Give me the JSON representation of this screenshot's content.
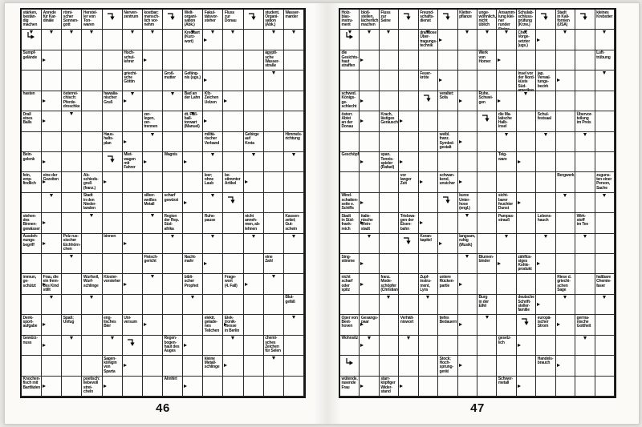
{
  "colors": {
    "paper": "#fbfaf7",
    "ink": "#0d0d0d",
    "grid_line": "#2a2a2a"
  },
  "pages": [
    {
      "number": "46",
      "grid": {
        "cols": 14,
        "rows": 19
      },
      "clues": [
        {
          "r": 0,
          "c": 0,
          "t": "stärken,\nbestän-\ndig\nmachen",
          "a": "d"
        },
        {
          "r": 0,
          "c": 1,
          "t": "Anrede\nfür Kar-\ndinäle",
          "a": "d"
        },
        {
          "r": 0,
          "c": 2,
          "t": "römi-\nscher\nSonnen-\ngott",
          "a": "d"
        },
        {
          "r": 0,
          "c": 3,
          "t": "Herstel-\nler von\nTon-\nwaren",
          "a": "d"
        },
        {
          "r": 0,
          "c": 4,
          "t": "",
          "a": "hd"
        },
        {
          "r": 0,
          "c": 5,
          "t": "Nerven-\nzentrum",
          "a": "d"
        },
        {
          "r": 0,
          "c": 6,
          "t": "kostbar;\nmensch-\nlich vor-\nnehm",
          "a": "d"
        },
        {
          "r": 0,
          "c": 7,
          "t": "",
          "a": "hd"
        },
        {
          "r": 0,
          "c": 8,
          "t": "Welt-\norgani-\nsation\n(Abk.)",
          "a": "d"
        },
        {
          "r": 0,
          "c": 9,
          "t": "Fakul-\ntätsvor-\nsteher",
          "a": "d"
        },
        {
          "r": 0,
          "c": 10,
          "t": "Fluss\nzur\nDonau",
          "a": "d"
        },
        {
          "r": 0,
          "c": 11,
          "t": "",
          "a": "hd"
        },
        {
          "r": 0,
          "c": 12,
          "t": "student.\nOrgani-\nsation\n(Abk.)",
          "a": "d"
        },
        {
          "r": 0,
          "c": 13,
          "t": "Wasser-\nmarder",
          "a": "d"
        },
        {
          "r": 1,
          "c": 0,
          "t": "",
          "a": "hr"
        },
        {
          "r": 1,
          "c": 8,
          "t": "Kreditart\n(Kurz-\nwort)",
          "a": "r"
        },
        {
          "r": 2,
          "c": 0,
          "t": "Sumpf-\ngelände",
          "a": "r"
        },
        {
          "r": 2,
          "c": 5,
          "t": "Hoch-\nschul-\nlehrer",
          "a": "r"
        },
        {
          "r": 2,
          "c": 12,
          "t": "ägypti-\nsche\nWasser-\nstraße",
          "a": "d"
        },
        {
          "r": 3,
          "c": 5,
          "t": "griechi-\nsche\nGöttin",
          "a": "d"
        },
        {
          "r": 3,
          "c": 7,
          "t": "Groß-\nmutter",
          "a": "d"
        },
        {
          "r": 3,
          "c": 8,
          "t": "Gefäng-\nnis (ugs.)",
          "a": "r"
        },
        {
          "r": 4,
          "c": 0,
          "t": "hasten",
          "a": "r"
        },
        {
          "r": 4,
          "c": 2,
          "t": "österrei-\nchisch:\nPferde-\ndroschke",
          "a": "d"
        },
        {
          "r": 4,
          "c": 4,
          "t": "hawaiia-\nnischer\nGruß",
          "a": "r"
        },
        {
          "r": 4,
          "c": 8,
          "t": "Bad an\nder Lahn",
          "a": "d"
        },
        {
          "r": 4,
          "c": 9,
          "t": "Kfz-\nZeichen\nUelzen",
          "a": "r"
        },
        {
          "r": 5,
          "c": 0,
          "t": "Drall\neines\nBalls",
          "a": "r"
        },
        {
          "r": 5,
          "c": 6,
          "t": "zer-\nlegen,\nzer-\ntrennen",
          "a": "d"
        },
        {
          "r": 5,
          "c": 8,
          "t": "dt. Fuß-\nball-\ntorwart\n(Manuel)",
          "a": "r"
        },
        {
          "r": 6,
          "c": 4,
          "t": "Haus-\nhalts-\nplan",
          "a": "r"
        },
        {
          "r": 6,
          "c": 9,
          "t": "militä-\nrischer\nVerband",
          "a": "d"
        },
        {
          "r": 6,
          "c": 11,
          "t": "Gebirge\nauf\nKreta",
          "a": "d"
        },
        {
          "r": 6,
          "c": 13,
          "t": "Himmels-\nrichtung",
          "a": "d"
        },
        {
          "r": 7,
          "c": 0,
          "t": "Bein-\ngelenk",
          "a": "r"
        },
        {
          "r": 7,
          "c": 4,
          "t": "",
          "a": "hd"
        },
        {
          "r": 7,
          "c": 5,
          "t": "Miet-\nwagen\nmit\nFahrer",
          "a": "r"
        },
        {
          "r": 7,
          "c": 7,
          "t": "Wagnis",
          "a": "r"
        },
        {
          "r": 8,
          "c": 0,
          "t": "fein,\nemp-\nfindlich",
          "a": "r"
        },
        {
          "r": 8,
          "c": 1,
          "t": "eine der\nGezeiten",
          "a": "d"
        },
        {
          "r": 8,
          "c": 3,
          "t": "Ab-\nschieds-\ngruß\n(franz.)",
          "a": "r"
        },
        {
          "r": 8,
          "c": 9,
          "t": "leer;\nohne\nLaub",
          "a": "d"
        },
        {
          "r": 8,
          "c": 10,
          "t": "be-\nstimmter\nArtikel",
          "a": "r"
        },
        {
          "r": 9,
          "c": 3,
          "t": "Stadt\nin den\nNieder-\nlanden",
          "a": "d"
        },
        {
          "r": 9,
          "c": 6,
          "t": "silber-\nweißes\nMetall",
          "a": "d"
        },
        {
          "r": 9,
          "c": 7,
          "t": "scharf\ngewürzt",
          "a": "r"
        },
        {
          "r": 9,
          "c": 10,
          "t": "",
          "a": "hd"
        },
        {
          "r": 10,
          "c": 0,
          "t": "stehen-\ndes\nBinnen-\ngewässer",
          "a": "r"
        },
        {
          "r": 10,
          "c": 7,
          "t": "Region\nder Rep.\nSüd-\nafrika",
          "a": "d"
        },
        {
          "r": 10,
          "c": 9,
          "t": "Ruhe-\npause",
          "a": "d"
        },
        {
          "r": 10,
          "c": 11,
          "t": "nicht\nanneh-\nmen, ab-\nlehnen",
          "a": "d"
        },
        {
          "r": 10,
          "c": 13,
          "t": "Kassen-\nzettel;\nGut-\nschein",
          "a": "d"
        },
        {
          "r": 11,
          "c": 0,
          "t": "Ausdeh-\nnungs-\nbegriff",
          "a": "r"
        },
        {
          "r": 11,
          "c": 2,
          "t": "Pelz rus-\nsischer\nEichhörn-\nchen",
          "a": "d"
        },
        {
          "r": 11,
          "c": 4,
          "t": "binnen",
          "a": "r"
        },
        {
          "r": 12,
          "c": 6,
          "t": "Fleisch-\ngericht",
          "a": "d"
        },
        {
          "r": 12,
          "c": 8,
          "t": "Nacht-\nmahr",
          "a": "r"
        },
        {
          "r": 12,
          "c": 12,
          "t": "eine\nZahl",
          "a": "d"
        },
        {
          "r": 13,
          "c": 0,
          "t": "immun,\nge-\nschützt",
          "a": "r"
        },
        {
          "r": 13,
          "c": 1,
          "t": "Frau, die\nein frem-\ndes Kind\nstillt",
          "a": "d"
        },
        {
          "r": 13,
          "c": 3,
          "t": "Wurfseil,\nWurf-\nschlinge",
          "a": "d"
        },
        {
          "r": 13,
          "c": 4,
          "t": "Kloster-\nvorsteher",
          "a": "r"
        },
        {
          "r": 13,
          "c": 8,
          "t": "bibli-\nscher\nProphet",
          "a": "d"
        },
        {
          "r": 13,
          "c": 10,
          "t": "Frage-\nwort\n(4. Fall)",
          "a": "r"
        },
        {
          "r": 14,
          "c": 13,
          "t": "Blut-\ngefäß",
          "a": "d"
        },
        {
          "r": 15,
          "c": 0,
          "t": "Denk-\nsport-\naufgabe",
          "a": "r"
        },
        {
          "r": 15,
          "c": 2,
          "t": "Spaß;\nUnfug",
          "a": "d"
        },
        {
          "r": 15,
          "c": 4,
          "t": "eng-\nlisches\nBier",
          "a": "d"
        },
        {
          "r": 15,
          "c": 5,
          "t": "Uni-\nversum",
          "a": "r"
        },
        {
          "r": 15,
          "c": 9,
          "t": "elektr.\ngelade-\nnes\nTeilchen",
          "a": "r"
        },
        {
          "r": 15,
          "c": 10,
          "t": "Elek-\ntronik-\nmesse\nin Berlin",
          "a": "d"
        },
        {
          "r": 16,
          "c": 0,
          "t": "Gewürz-\nnuss",
          "a": "r"
        },
        {
          "r": 16,
          "c": 5,
          "t": "",
          "a": "hd"
        },
        {
          "r": 16,
          "c": 7,
          "t": "Regen-\nbogen-\nhaut des\nAuges",
          "a": "r"
        },
        {
          "r": 16,
          "c": 12,
          "t": "chemi-\nsches\nZeichen\nfür Selen",
          "a": "d"
        },
        {
          "r": 17,
          "c": 4,
          "t": "Sagen-\nkönigin\nvon\nSparta",
          "a": "r"
        },
        {
          "r": 17,
          "c": 9,
          "t": "kleine\nMetall-\nschlinge",
          "a": "r"
        },
        {
          "r": 18,
          "c": 0,
          "t": "Knochen-\nfisch mit\nBartfäden",
          "a": "r"
        },
        {
          "r": 18,
          "c": 3,
          "t": "poetisch:\nliebevoll\nstrei-\ncheln",
          "a": "r"
        },
        {
          "r": 18,
          "c": 7,
          "t": "Almhirt",
          "a": "r"
        }
      ]
    },
    {
      "number": "47",
      "grid": {
        "cols": 14,
        "rows": 19
      },
      "clues": [
        {
          "r": 0,
          "c": 0,
          "t": "Holz-\nblas-\ninstru-\nment",
          "a": "d"
        },
        {
          "r": 0,
          "c": 1,
          "t": "bloß-\nstellen,\nlächerlich\nmachen",
          "a": "d"
        },
        {
          "r": 0,
          "c": 2,
          "t": "Fluss\nzur\nSeine",
          "a": "d"
        },
        {
          "r": 0,
          "c": 3,
          "t": "",
          "a": "hd"
        },
        {
          "r": 0,
          "c": 4,
          "t": "Freund-\nschafts-\ndienst",
          "a": "d"
        },
        {
          "r": 0,
          "c": 5,
          "t": "",
          "a": "hd"
        },
        {
          "r": 0,
          "c": 6,
          "t": "Kletter-\npflanze",
          "a": "d"
        },
        {
          "r": 0,
          "c": 7,
          "t": "unge-\nwöhnlich,\nnicht\nüblich",
          "a": "d"
        },
        {
          "r": 0,
          "c": 8,
          "t": "Ansamm-\nlung klei-\nner runder\nSteine",
          "a": "d"
        },
        {
          "r": 0,
          "c": 9,
          "t": "Schulab-\nschluss-\nprüfung\n(Krzw.)",
          "a": "d"
        },
        {
          "r": 0,
          "c": 10,
          "t": "",
          "a": "hd"
        },
        {
          "r": 0,
          "c": 11,
          "t": "Stadt\nin Kali-\nfornien\n(USA)",
          "a": "d"
        },
        {
          "r": 0,
          "c": 12,
          "t": "",
          "a": "hd"
        },
        {
          "r": 0,
          "c": 13,
          "t": "kleines\nKrebstier",
          "a": "d"
        },
        {
          "r": 1,
          "c": 0,
          "t": "",
          "a": "hr"
        },
        {
          "r": 1,
          "c": 4,
          "t": "drahtlose\nÜber-\ntragungs-\ntechnik",
          "a": "r"
        },
        {
          "r": 1,
          "c": 9,
          "t": "Chef,\nVorge-\nsetzter\n(ugs.)",
          "a": "r"
        },
        {
          "r": 2,
          "c": 0,
          "t": "die\nGesichts-\nhaut\nstraffen",
          "a": "r"
        },
        {
          "r": 2,
          "c": 7,
          "t": "Werk\nvon\nHomer",
          "a": "r"
        },
        {
          "r": 2,
          "c": 13,
          "t": "Luft-\ntrübung",
          "a": "d"
        },
        {
          "r": 3,
          "c": 4,
          "t": "Feuer-\nkröte",
          "a": "r"
        },
        {
          "r": 3,
          "c": 9,
          "t": "Insel vor\nder Nord-\nküste Süd-\namerikas",
          "a": "d"
        },
        {
          "r": 3,
          "c": 10,
          "t": "jap.\nVerwal-\ntungs-\nbezirk",
          "a": "r"
        },
        {
          "r": 4,
          "c": 0,
          "t": "schwed.\nKönigs-\nge-\nschlecht",
          "a": "r"
        },
        {
          "r": 4,
          "c": 4,
          "t": "",
          "a": "hd"
        },
        {
          "r": 4,
          "c": 5,
          "t": "veraltet:\nSofa",
          "a": "r"
        },
        {
          "r": 4,
          "c": 7,
          "t": "Ruhe,\nSchwei-\ngen",
          "a": "r"
        },
        {
          "r": 5,
          "c": 0,
          "t": "österr.\nAbtei\nan der\nDonau",
          "a": "r"
        },
        {
          "r": 5,
          "c": 2,
          "t": "Krach,\nlästiges\nGeräusch",
          "a": "r"
        },
        {
          "r": 5,
          "c": 7,
          "t": "",
          "a": "hd"
        },
        {
          "r": 5,
          "c": 8,
          "t": "die Ma-\nlaiische\nHalb-\ninsel",
          "a": "d"
        },
        {
          "r": 5,
          "c": 10,
          "t": "Schul-\nfestsaal",
          "a": "d"
        },
        {
          "r": 5,
          "c": 12,
          "t": "Übervor-\nteilung\nim Preis",
          "a": "d"
        },
        {
          "r": 6,
          "c": 5,
          "t": "weibl.\nfranz.\nSymbol-\ngestalt",
          "a": "r"
        },
        {
          "r": 7,
          "c": 0,
          "t": "Geschöpf",
          "a": "r"
        },
        {
          "r": 7,
          "c": 2,
          "t": "span.\nTennis-\nspieler\n(Rafael)",
          "a": "r"
        },
        {
          "r": 7,
          "c": 8,
          "t": "Teig-\nware",
          "a": "r"
        },
        {
          "r": 8,
          "c": 3,
          "t": "vor\nlanger\nZeit",
          "a": "r"
        },
        {
          "r": 8,
          "c": 5,
          "t": "schwan-\nkend,\nunsicher",
          "a": "r"
        },
        {
          "r": 8,
          "c": 11,
          "t": "Bergwerk",
          "a": "d"
        },
        {
          "r": 8,
          "c": 13,
          "t": "zuguns-\nten einer\nPerson,\nSache",
          "a": "d"
        },
        {
          "r": 9,
          "c": 0,
          "t": "Wind-\nschatten-\nseite e.\nSchiffs",
          "a": "r"
        },
        {
          "r": 9,
          "c": 5,
          "t": "",
          "a": "hd"
        },
        {
          "r": 9,
          "c": 6,
          "t": "kurze\nUnter-\nhose\n(engl.)",
          "a": "d"
        },
        {
          "r": 9,
          "c": 8,
          "t": "sicht-\nbarer\nfeuchter\nDunst",
          "a": "r"
        },
        {
          "r": 10,
          "c": 0,
          "t": "Stadt\nin Süd-\nfrank-\nreich",
          "a": "r"
        },
        {
          "r": 10,
          "c": 1,
          "t": "italie-\nnische\nWein-\nstadt",
          "a": "d"
        },
        {
          "r": 10,
          "c": 3,
          "t": "Triebwa-\ngen der\nEisen-\nbahn",
          "a": "r"
        },
        {
          "r": 10,
          "c": 8,
          "t": "Pampas-\nstrauß",
          "a": "d"
        },
        {
          "r": 10,
          "c": 10,
          "t": "Lebens-\nhauch",
          "a": "d"
        },
        {
          "r": 10,
          "c": 12,
          "t": "Wirk-\nstoff\nim Tee",
          "a": "d"
        },
        {
          "r": 11,
          "c": 3,
          "t": "",
          "a": "hd"
        },
        {
          "r": 11,
          "c": 4,
          "t": "Koran-\nkapitel",
          "a": "r"
        },
        {
          "r": 11,
          "c": 6,
          "t": "langsam,\nruhig\n(Musik)",
          "a": "d"
        },
        {
          "r": 12,
          "c": 0,
          "t": "Sing-\nstimme",
          "a": "r"
        },
        {
          "r": 12,
          "c": 7,
          "t": "Blumen-\nbinder",
          "a": "r"
        },
        {
          "r": 12,
          "c": 9,
          "t": "zähflüs-\nsiges\nKohle-\nprodukt",
          "a": "r"
        },
        {
          "r": 13,
          "c": 0,
          "t": "nicht\nscharf\noder\nspitz",
          "a": "r"
        },
        {
          "r": 13,
          "c": 2,
          "t": "franz.\nMode-\nschöpfer\n(Christian)",
          "a": "d"
        },
        {
          "r": 13,
          "c": 4,
          "t": "Zupf-\ninstru-\nment,\nLyra",
          "a": "d"
        },
        {
          "r": 13,
          "c": 5,
          "t": "untere\nRücken-\npartie",
          "a": "r"
        },
        {
          "r": 13,
          "c": 11,
          "t": "Riese d.\ngriechi-\nschen\nSage",
          "a": "d"
        },
        {
          "r": 13,
          "c": 13,
          "t": "haltbare\nChemie-\nfaser",
          "a": "d"
        },
        {
          "r": 14,
          "c": 7,
          "t": "Burg\nin der\nEifel",
          "a": "d"
        },
        {
          "r": 14,
          "c": 9,
          "t": "deutsche\nSchrift-\nsteller-\nfamilie",
          "a": "r"
        },
        {
          "r": 15,
          "c": 0,
          "t": "Oper von\nBeet-\nhoven",
          "a": "r"
        },
        {
          "r": 15,
          "c": 1,
          "t": "Gesangs-\npaar",
          "a": "d"
        },
        {
          "r": 15,
          "c": 3,
          "t": "Verhält-\nniswort",
          "a": "d"
        },
        {
          "r": 15,
          "c": 5,
          "t": "tiefes\nBedauern",
          "a": "r"
        },
        {
          "r": 15,
          "c": 9,
          "t": "",
          "a": "hd"
        },
        {
          "r": 15,
          "c": 10,
          "t": "europä-\nischer\nStrom",
          "a": "r"
        },
        {
          "r": 15,
          "c": 12,
          "t": "germa-\nnische\nGottheit",
          "a": "d"
        },
        {
          "r": 16,
          "c": 0,
          "t": "Wohnsitz",
          "a": "r"
        },
        {
          "r": 16,
          "c": 8,
          "t": "gesetz-\nlich",
          "a": "r"
        },
        {
          "r": 17,
          "c": 0,
          "t": "",
          "a": "hr"
        },
        {
          "r": 17,
          "c": 5,
          "t": "Stock;\nHoch-\nsprung-\ngerät",
          "a": "r"
        },
        {
          "r": 17,
          "c": 10,
          "t": "Handels-\nbrauch",
          "a": "r"
        },
        {
          "r": 18,
          "c": 0,
          "t": "wütende,\nrasende\nFrau",
          "a": "r"
        },
        {
          "r": 18,
          "c": 2,
          "t": "starr-\nköpfiger\nWider-\nstand",
          "a": "r"
        },
        {
          "r": 18,
          "c": 8,
          "t": "Schwer-\nmetall",
          "a": "r"
        }
      ]
    }
  ]
}
